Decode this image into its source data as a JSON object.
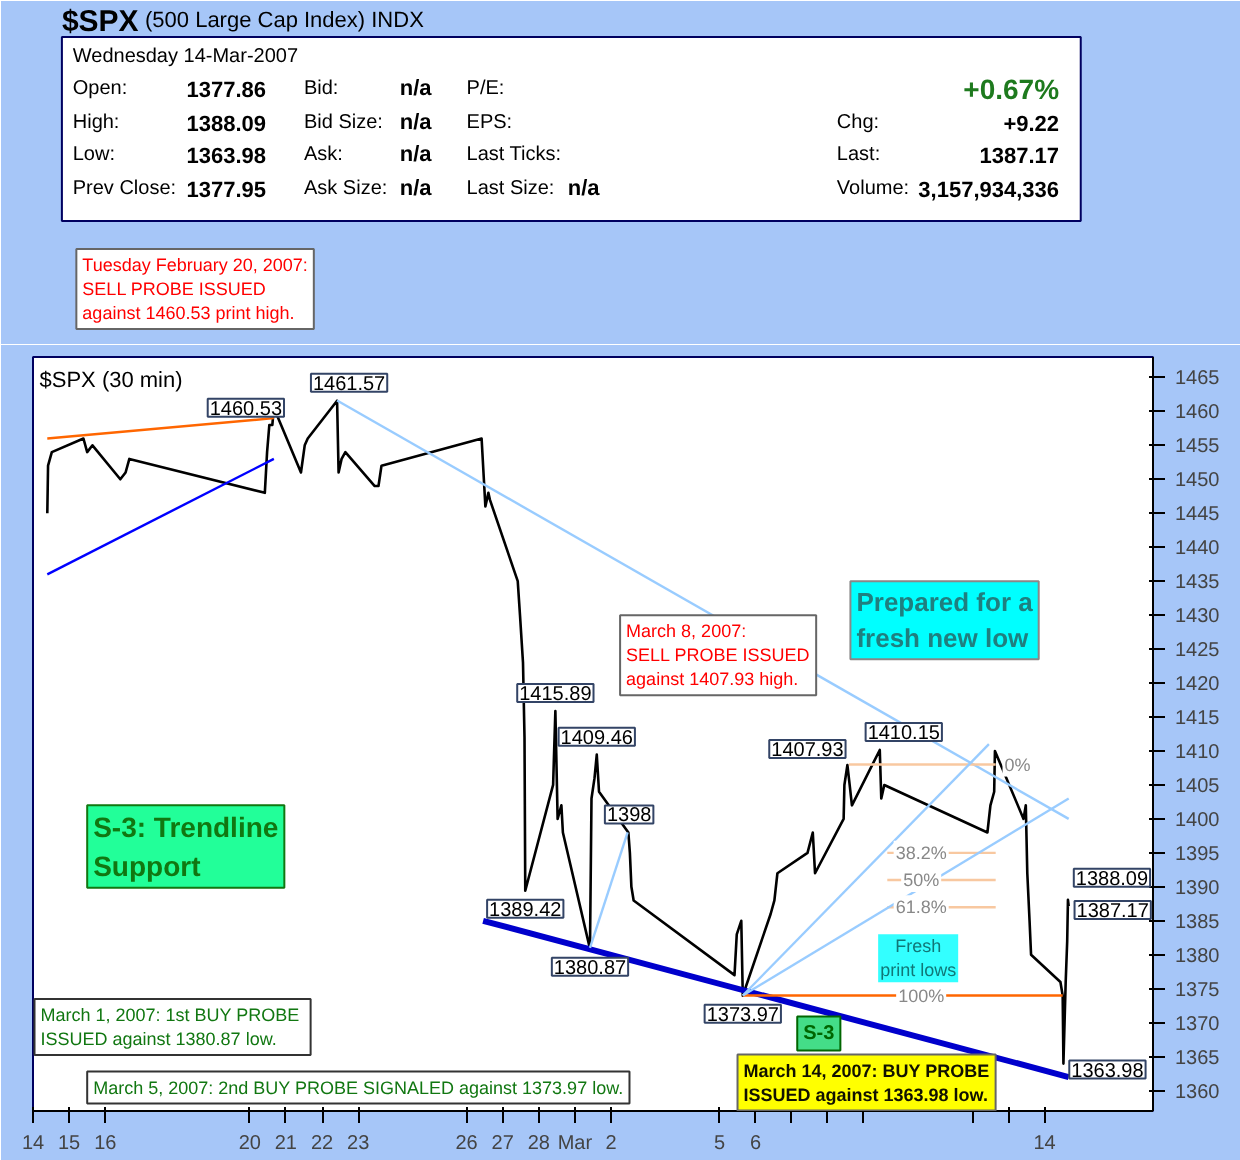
{
  "chart_data": {
    "type": "line",
    "title": "$SPX",
    "subtitle": "(500 Large Cap Index)  INDX",
    "xlim": [
      "2007-02-14",
      "2007-03-17"
    ],
    "ylim": [
      1357,
      1468
    ],
    "xticks": [
      {
        "value": "2007-02-14",
        "label": "14"
      },
      {
        "value": "2007-02-15",
        "label": "15"
      },
      {
        "value": "2007-02-16",
        "label": "16"
      },
      {
        "value": "2007-02-20",
        "label": "20"
      },
      {
        "value": "2007-02-21",
        "label": "21"
      },
      {
        "value": "2007-02-22",
        "label": "22"
      },
      {
        "value": "2007-02-23",
        "label": "23"
      },
      {
        "value": "2007-02-26",
        "label": "26"
      },
      {
        "value": "2007-02-27",
        "label": "27"
      },
      {
        "value": "2007-02-28",
        "label": "28"
      },
      {
        "value": "2007-03-01",
        "label": "Mar"
      },
      {
        "value": "2007-03-02",
        "label": "2"
      },
      {
        "value": "2007-03-05",
        "label": "5"
      },
      {
        "value": "2007-03-06",
        "label": "6"
      },
      {
        "value": "2007-03-07",
        "label": null
      },
      {
        "value": "2007-03-08",
        "label": null
      },
      {
        "value": "2007-03-09",
        "label": null
      },
      {
        "value": "2007-03-12",
        "label": null
      },
      {
        "value": "2007-03-13",
        "label": null
      },
      {
        "value": "2007-03-14",
        "label": "14"
      }
    ],
    "yticks": [
      1360,
      1365,
      1370,
      1375,
      1380,
      1385,
      1390,
      1395,
      1400,
      1405,
      1410,
      1415,
      1420,
      1425,
      1430,
      1435,
      1440,
      1445,
      1450,
      1455,
      1460,
      1465
    ],
    "grid": false,
    "marker": "none",
    "line_style": "solid",
    "series": [
      {
        "color": "#000000",
        "x": [
          "2007-02-14T09:30",
          "2007-02-14T10:00",
          "2007-02-14T12:30",
          "2007-02-15T09:30",
          "2007-02-15T12:00",
          "2007-02-15T15:30",
          "2007-02-16T10:00",
          "2007-02-16T13:30",
          "2007-02-16T16:00",
          "2007-02-20T10:00",
          "2007-02-20T11:30",
          "2007-02-20T13:00",
          "2007-02-20T15:00",
          "2007-02-20T16:00",
          "2007-02-21T10:00",
          "2007-02-21T12:30",
          "2007-02-21T14:30",
          "2007-02-22T10:00",
          "2007-02-22T11:00",
          "2007-02-22T13:00",
          "2007-02-22T15:30",
          "2007-02-23T11:00",
          "2007-02-23T13:30",
          "2007-02-23T15:30",
          "2007-02-26T10:00",
          "2007-02-26T11:30",
          "2007-02-26T12:30",
          "2007-02-26T14:30",
          "2007-02-26T15:30",
          "2007-02-27T10:00",
          "2007-02-27T11:30",
          "2007-02-27T13:30",
          "2007-02-27T14:30",
          "2007-02-27T15:00",
          "2007-02-28T09:30",
          "2007-02-28T11:00",
          "2007-02-28T12:30",
          "2007-02-28T15:00",
          "2007-02-28T16:00",
          "2007-03-01T10:00",
          "2007-03-01T11:00",
          "2007-03-01T13:00",
          "2007-03-01T14:30",
          "2007-03-01T16:00",
          "2007-03-02T11:30",
          "2007-03-02T12:30",
          "2007-03-02T13:30",
          "2007-03-02T15:00",
          "2007-03-05T10:00",
          "2007-03-05T11:30",
          "2007-03-05T13:00",
          "2007-03-05T14:30",
          "2007-03-05T15:30",
          "2007-03-06T10:00",
          "2007-03-06T12:30",
          "2007-03-06T14:30",
          "2007-03-07T10:30",
          "2007-03-07T14:00",
          "2007-03-07T15:30",
          "2007-03-08T10:30",
          "2007-03-08T11:00",
          "2007-03-08T13:00",
          "2007-03-08T14:30",
          "2007-03-08T16:00",
          "2007-03-09T10:30",
          "2007-03-09T11:30",
          "2007-03-09T13:30",
          "2007-03-12T10:00",
          "2007-03-12T12:00",
          "2007-03-12T14:30",
          "2007-03-12T15:00",
          "2007-03-13T10:00",
          "2007-03-13T11:30",
          "2007-03-13T12:30",
          "2007-03-13T14:00",
          "2007-03-13T15:00",
          "2007-03-14T10:30",
          "2007-03-14T12:00",
          "2007-03-14T12:30",
          "2007-03-14T14:00",
          "2007-03-14T15:00",
          "2007-03-14T15:30",
          "2007-03-14T16:00"
        ],
        "values": [
          1445,
          1452,
          1454,
          1456,
          1454,
          1455,
          1450,
          1451,
          1453,
          1448,
          1454,
          1458,
          1458,
          1460.53,
          1451,
          1455,
          1456,
          1461.57,
          1451,
          1453,
          1454,
          1449,
          1449,
          1452,
          1456,
          1450,
          1446,
          1448,
          1447,
          1435,
          1430,
          1423,
          1412,
          1389.42,
          1405,
          1415.89,
          1400,
          1402,
          1398,
          1380.87,
          1403,
          1406,
          1409.46,
          1404,
          1398,
          1395,
          1390,
          1388,
          1377,
          1383,
          1384,
          1385,
          1373.97,
          1386,
          1388,
          1392,
          1395,
          1398,
          1392,
          1400,
          1405,
          1407.93,
          1405,
          1402,
          1410.15,
          1403,
          1405,
          1398,
          1402,
          1404,
          1410,
          1400,
          1402,
          1392,
          1385,
          1380,
          1376,
          1374,
          1363.98,
          1376,
          1382,
          1388.09,
          1387.17
        ]
      },
      {
        "color": "#0000ff",
        "x": [
          "2007-02-14T09:30",
          "2007-02-20T16:00"
        ],
        "values": [
          1436,
          1453
        ]
      },
      {
        "color": "#ff6600",
        "x": [
          "2007-02-14T09:30",
          "2007-02-20T16:00"
        ],
        "values": [
          1456,
          1459
        ]
      },
      {
        "color": "#99ccff",
        "x": [
          "2007-02-22T10:00",
          "2007-03-14T16:00"
        ],
        "values": [
          1461.6,
          1400
        ]
      },
      {
        "color": "#0000cc",
        "x": [
          "2007-02-26T11:00",
          "2007-03-14T16:00"
        ],
        "values": [
          1385,
          1362
        ]
      },
      {
        "color": "#ff6600",
        "x": [
          "2007-03-05T15:30",
          "2007-03-14T12:00"
        ],
        "values": [
          1374,
          1374
        ]
      },
      {
        "color": "#f8c8a0",
        "x": [
          "2007-03-08T14:00",
          "2007-03-12T15:30"
        ],
        "values": [
          1408,
          1408
        ]
      },
      {
        "color": "#f8c8a0",
        "x": [
          "2007-03-09T15:30",
          "2007-03-12T15:30"
        ],
        "values": [
          1395,
          1395
        ]
      },
      {
        "color": "#f8c8a0",
        "x": [
          "2007-03-09T15:30",
          "2007-03-12T15:30"
        ],
        "values": [
          1391,
          1391
        ]
      },
      {
        "color": "#f8c8a0",
        "x": [
          "2007-03-09T15:30",
          "2007-03-12T15:30"
        ],
        "values": [
          1387,
          1387
        ]
      },
      {
        "color": "#99ccff",
        "x": [
          "2007-03-05T15:30",
          "2007-03-12T11:00"
        ],
        "values": [
          1374,
          1411
        ]
      },
      {
        "color": "#99ccff",
        "x": [
          "2007-03-05T15:30",
          "2007-03-14T16:00"
        ],
        "values": [
          1374,
          1403
        ]
      },
      {
        "color": "#99ccff",
        "x": [
          "2007-03-01T10:00",
          "2007-03-02T11:00"
        ],
        "values": [
          1381,
          1398
        ]
      }
    ],
    "annotations": [
      "Wednesday  14-Mar-2007",
      "Open:",
      "1377.86",
      "Bid:",
      "n/a",
      "P/E:",
      "+0.67%",
      "High:",
      "1388.09",
      "Bid Size:",
      "n/a",
      "EPS:",
      "Chg:",
      "+9.22",
      "Low:",
      "1363.98",
      "Ask:",
      "n/a",
      "Last Ticks:",
      "Last:",
      "1387.17",
      "Prev Close:",
      "1377.95",
      "Ask Size:",
      "n/a",
      "Last Size:",
      "n/a",
      "Volume:",
      "3,157,934,336",
      "$SPX (30 min)",
      "Tuesday February 20, 2007:\nSELL PROBE ISSUED\nagainst 1460.53 print high.",
      "Prepared for a\nfresh new low",
      "March 8, 2007:\nSELL PROBE ISSUED\nagainst 1407.93 high.",
      "S-3: Trendline\nSupport",
      "March 1, 2007:  1st BUY PROBE\nISSUED against 1380.87 low.",
      "March 5, 2007: 2nd BUY PROBE SIGNALED against 1373.97 low.",
      "S-3",
      "Fresh\nprint lows",
      "March 14, 2007: BUY PROBE\nISSUED against 1363.98 low.",
      "0%",
      "38.2%",
      "50%",
      "61.8%",
      "100%",
      {
        "text": "1460.53",
        "x": "2007-02-20T16:00",
        "y": 1460.53
      },
      {
        "text": "1461.57",
        "x": "2007-02-22T10:00",
        "y": 1461.57
      },
      {
        "text": "1415.89",
        "x": "2007-02-28T11:00",
        "y": 1415.89
      },
      {
        "text": "1389.42",
        "x": "2007-02-27T15:00",
        "y": 1389.42
      },
      {
        "text": "1409.46",
        "x": "2007-03-01T14:30",
        "y": 1409.46
      },
      {
        "text": "1398",
        "x": "2007-03-02T12:00",
        "y": 1398
      },
      {
        "text": "1380.87",
        "x": "2007-03-01T10:00",
        "y": 1380.87
      },
      {
        "text": "1373.97",
        "x": "2007-03-05T15:30",
        "y": 1373.97
      },
      {
        "text": "1407.93",
        "x": "2007-03-08T13:00",
        "y": 1407.93
      },
      {
        "text": "1410.15",
        "x": "2007-03-09T10:30",
        "y": 1410.15
      },
      {
        "text": "1388.09",
        "x": "2007-03-14T15:30",
        "y": 1388.09
      },
      {
        "text": "1363.98",
        "x": "2007-03-14T12:30",
        "y": 1363.98
      },
      {
        "text": "1387.17",
        "x": "2007-03-14T16:00",
        "y": 1387.17
      }
    ]
  }
}
